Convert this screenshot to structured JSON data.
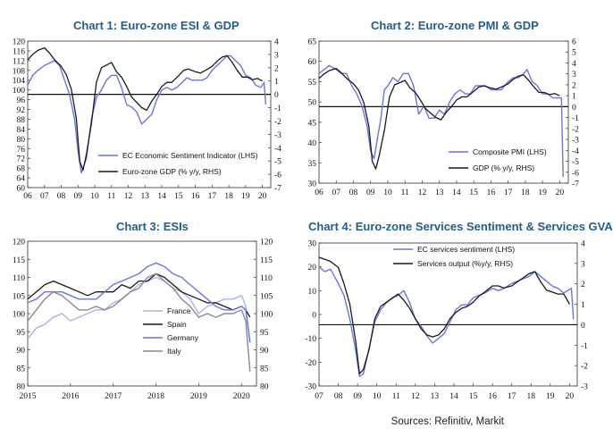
{
  "source": "Sources: Refinitiv, Markit",
  "colors": {
    "blue": "#6b74e6",
    "black": "#1a1a1a",
    "title": "#1f5f8b",
    "lightblue": "#aab2ee",
    "grey": "#8a8a8a"
  },
  "chart_data": [
    {
      "type": "line",
      "title": "Chart 1: Euro-zone ESI & GDP",
      "x_ticks": [
        "06",
        "07",
        "08",
        "09",
        "10",
        "11",
        "12",
        "13",
        "14",
        "15",
        "16",
        "17",
        "18",
        "19",
        "20"
      ],
      "ylim_left": [
        60,
        120
      ],
      "ylim_right": [
        -7,
        4
      ],
      "y_left_ticks": [
        120,
        116,
        112,
        108,
        104,
        100,
        96,
        92,
        88,
        84,
        80,
        76,
        72,
        68,
        64,
        60
      ],
      "y_right_ticks": [
        4,
        3,
        2,
        1,
        0,
        -1,
        -2,
        -3,
        -4,
        -5,
        -6,
        -7
      ],
      "zero_line_right": 0,
      "legend": [
        "EC Economic Sentiment Indicator (LHS)",
        "Euro-zone GDP (% y/y, RHS)"
      ],
      "series": [
        {
          "name": "EC Economic Sentiment Indicator (LHS)",
          "axis": "left",
          "color": "blue",
          "x": [
            2006.0,
            2006.3,
            2006.6,
            2007.0,
            2007.3,
            2007.6,
            2007.9,
            2008.2,
            2008.5,
            2008.8,
            2009.0,
            2009.2,
            2009.5,
            2009.8,
            2010.1,
            2010.4,
            2010.7,
            2011.0,
            2011.3,
            2011.6,
            2011.9,
            2012.2,
            2012.5,
            2012.8,
            2013.1,
            2013.4,
            2013.7,
            2014.0,
            2014.3,
            2014.6,
            2014.9,
            2015.2,
            2015.5,
            2015.8,
            2016.1,
            2016.4,
            2016.7,
            2017.0,
            2017.3,
            2017.6,
            2017.9,
            2018.1,
            2018.4,
            2018.7,
            2019.0,
            2019.3,
            2019.6,
            2019.9,
            2020.1,
            2020.2
          ],
          "y": [
            102,
            106,
            108,
            110,
            111,
            112,
            110,
            104,
            98,
            88,
            75,
            66,
            72,
            88,
            97,
            100,
            104,
            106,
            106,
            101,
            94,
            93,
            91,
            86,
            88,
            90,
            96,
            100,
            101,
            100,
            101,
            103,
            105,
            104,
            104,
            104,
            105,
            108,
            110,
            112,
            114,
            114,
            112,
            110,
            106,
            105,
            102,
            101,
            103,
            94
          ]
        },
        {
          "name": "Euro-zone GDP (% y/y, RHS)",
          "axis": "right",
          "color": "black",
          "x": [
            2006.0,
            2006.3,
            2006.6,
            2007.0,
            2007.3,
            2007.6,
            2008.0,
            2008.3,
            2008.6,
            2008.9,
            2009.1,
            2009.3,
            2009.5,
            2009.8,
            2010.1,
            2010.4,
            2010.7,
            2011.0,
            2011.3,
            2011.6,
            2011.9,
            2012.2,
            2012.5,
            2012.8,
            2013.1,
            2013.4,
            2013.7,
            2014.0,
            2014.3,
            2014.6,
            2015.0,
            2015.3,
            2015.6,
            2016.0,
            2016.3,
            2016.6,
            2017.0,
            2017.3,
            2017.6,
            2017.9,
            2018.2,
            2018.5,
            2018.8,
            2019.1,
            2019.4,
            2019.7,
            2020.0
          ],
          "y": [
            2.6,
            3.0,
            3.3,
            3.5,
            3.1,
            2.6,
            2.1,
            1.5,
            0.4,
            -1.8,
            -5.0,
            -5.7,
            -4.5,
            -2.2,
            0.9,
            2.0,
            2.2,
            2.4,
            1.7,
            1.3,
            0.6,
            -0.2,
            -0.6,
            -1.0,
            -1.2,
            -0.5,
            0.0,
            0.6,
            0.9,
            0.9,
            1.4,
            1.8,
            1.9,
            1.7,
            1.6,
            1.8,
            2.1,
            2.5,
            2.8,
            2.9,
            2.4,
            1.8,
            1.3,
            1.3,
            1.1,
            1.2,
            1.0
          ]
        }
      ]
    },
    {
      "type": "line",
      "title": "Chart 2: Euro-zone PMI & GDP",
      "x_ticks": [
        "06",
        "07",
        "08",
        "09",
        "10",
        "11",
        "12",
        "13",
        "14",
        "15",
        "16",
        "17",
        "18",
        "19",
        "20"
      ],
      "ylim_left": [
        30,
        65
      ],
      "ylim_right": [
        -7,
        6
      ],
      "y_left_ticks": [
        65,
        60,
        55,
        50,
        45,
        40,
        35,
        30
      ],
      "y_right_ticks": [
        6,
        5,
        4,
        3,
        2,
        1,
        0,
        -1,
        -2,
        -3,
        -4,
        -5,
        -6,
        -7
      ],
      "zero_line_right": 0,
      "legend": [
        "Composite PMI (LHS)",
        "GDP (% y/y, RHS)"
      ],
      "series": [
        {
          "name": "Composite PMI (LHS)",
          "axis": "left",
          "color": "blue",
          "x": [
            2006.0,
            2006.3,
            2006.6,
            2007.0,
            2007.3,
            2007.6,
            2007.9,
            2008.2,
            2008.5,
            2008.8,
            2009.0,
            2009.2,
            2009.4,
            2009.6,
            2009.8,
            2010.0,
            2010.3,
            2010.6,
            2010.9,
            2011.2,
            2011.5,
            2011.8,
            2012.1,
            2012.4,
            2012.7,
            2013.0,
            2013.3,
            2013.6,
            2013.9,
            2014.2,
            2014.5,
            2014.8,
            2015.1,
            2015.4,
            2015.7,
            2016.0,
            2016.3,
            2016.6,
            2017.0,
            2017.3,
            2017.6,
            2017.9,
            2018.1,
            2018.4,
            2018.7,
            2019.0,
            2019.3,
            2019.6,
            2019.9,
            2020.1,
            2020.2
          ],
          "y": [
            57,
            58,
            59,
            58,
            57,
            57,
            54,
            52,
            49,
            44,
            38,
            36,
            41,
            46,
            53,
            54,
            56,
            55,
            57,
            57,
            54,
            47,
            49,
            46,
            46,
            48,
            47,
            50,
            52,
            53,
            52,
            52,
            54,
            54,
            54,
            53,
            53,
            53,
            55,
            56,
            56,
            57,
            58,
            55,
            54,
            52,
            52,
            51,
            51,
            51,
            31.5
          ]
        },
        {
          "name": "GDP (% y/y, RHS)",
          "axis": "right",
          "color": "black",
          "x": [
            2006.0,
            2006.3,
            2006.6,
            2007.0,
            2007.3,
            2007.6,
            2008.0,
            2008.3,
            2008.6,
            2008.9,
            2009.1,
            2009.3,
            2009.5,
            2009.8,
            2010.1,
            2010.4,
            2010.7,
            2011.0,
            2011.3,
            2011.6,
            2011.9,
            2012.2,
            2012.5,
            2012.8,
            2013.1,
            2013.4,
            2013.7,
            2014.0,
            2014.3,
            2014.6,
            2015.0,
            2015.3,
            2015.6,
            2016.0,
            2016.3,
            2016.6,
            2017.0,
            2017.3,
            2017.6,
            2017.9,
            2018.2,
            2018.5,
            2018.8,
            2019.1,
            2019.4,
            2019.7,
            2020.0
          ],
          "y": [
            2.6,
            3.0,
            3.3,
            3.5,
            3.1,
            2.6,
            2.1,
            1.5,
            0.4,
            -1.8,
            -5.0,
            -5.7,
            -4.5,
            -2.2,
            0.9,
            2.0,
            2.2,
            2.4,
            1.7,
            1.3,
            0.6,
            -0.2,
            -0.6,
            -1.0,
            -1.2,
            -0.5,
            0.0,
            0.6,
            0.9,
            0.9,
            1.4,
            1.8,
            1.9,
            1.7,
            1.6,
            1.8,
            2.1,
            2.5,
            2.8,
            2.9,
            2.4,
            1.8,
            1.3,
            1.3,
            1.1,
            1.2,
            1.0
          ]
        }
      ]
    },
    {
      "type": "line",
      "title": "Chart 3: ESIs",
      "x_ticks": [
        "2015",
        "2016",
        "2017",
        "2018",
        "2019",
        "2020"
      ],
      "ylim_left": [
        80,
        120
      ],
      "ylim_right": [
        80,
        120
      ],
      "y_left_ticks": [
        120,
        115,
        110,
        105,
        100,
        95,
        90,
        85,
        80
      ],
      "y_right_ticks": [
        120,
        115,
        110,
        105,
        100,
        95,
        90,
        85,
        80
      ],
      "legend": [
        "France",
        "Spain",
        "Germany",
        "Italy"
      ],
      "series": [
        {
          "name": "France",
          "axis": "left",
          "color": "lightblue",
          "x": [
            2015.0,
            2015.2,
            2015.4,
            2015.6,
            2015.8,
            2016.0,
            2016.2,
            2016.4,
            2016.6,
            2016.8,
            2017.0,
            2017.2,
            2017.4,
            2017.6,
            2017.8,
            2018.0,
            2018.2,
            2018.4,
            2018.6,
            2018.8,
            2019.0,
            2019.2,
            2019.4,
            2019.6,
            2019.8,
            2020.0,
            2020.1,
            2020.2
          ],
          "y": [
            93,
            96,
            97,
            99,
            100,
            98,
            99,
            100,
            101,
            101,
            103,
            104,
            106,
            108,
            109,
            110,
            109,
            107,
            106,
            104,
            100,
            102,
            103,
            104,
            104,
            105,
            102,
            92
          ]
        },
        {
          "name": "Spain",
          "axis": "left",
          "color": "black",
          "x": [
            2015.0,
            2015.2,
            2015.4,
            2015.6,
            2015.8,
            2016.0,
            2016.2,
            2016.4,
            2016.6,
            2016.8,
            2017.0,
            2017.2,
            2017.4,
            2017.6,
            2017.8,
            2018.0,
            2018.2,
            2018.4,
            2018.6,
            2018.8,
            2019.0,
            2019.2,
            2019.4,
            2019.6,
            2019.8,
            2020.0,
            2020.1,
            2020.2
          ],
          "y": [
            104,
            106,
            108,
            109,
            108,
            107,
            106,
            105,
            106,
            106,
            106,
            108,
            107,
            109,
            109,
            111,
            110,
            108,
            106,
            105,
            104,
            103,
            103,
            102,
            101,
            102,
            101,
            99
          ]
        },
        {
          "name": "Germany",
          "axis": "left",
          "color": "blue",
          "x": [
            2015.0,
            2015.2,
            2015.4,
            2015.6,
            2015.8,
            2016.0,
            2016.2,
            2016.4,
            2016.6,
            2016.8,
            2017.0,
            2017.2,
            2017.4,
            2017.6,
            2017.8,
            2018.0,
            2018.2,
            2018.4,
            2018.6,
            2018.8,
            2019.0,
            2019.2,
            2019.4,
            2019.6,
            2019.8,
            2020.0,
            2020.1,
            2020.2
          ],
          "y": [
            103,
            104,
            106,
            106,
            106,
            105,
            104,
            104,
            104,
            106,
            108,
            109,
            110,
            111,
            113,
            114,
            113,
            111,
            110,
            108,
            106,
            104,
            102,
            101,
            101,
            102,
            101,
            92
          ]
        },
        {
          "name": "Italy",
          "axis": "left",
          "color": "grey",
          "x": [
            2015.0,
            2015.2,
            2015.4,
            2015.6,
            2015.8,
            2016.0,
            2016.2,
            2016.4,
            2016.6,
            2016.8,
            2017.0,
            2017.2,
            2017.4,
            2017.6,
            2017.8,
            2018.0,
            2018.2,
            2018.4,
            2018.6,
            2018.8,
            2019.0,
            2019.2,
            2019.4,
            2019.6,
            2019.8,
            2020.0,
            2020.1,
            2020.2
          ],
          "y": [
            98,
            101,
            104,
            106,
            105,
            103,
            101,
            101,
            102,
            101,
            102,
            104,
            106,
            107,
            110,
            111,
            109,
            107,
            104,
            102,
            99,
            100,
            99,
            100,
            100,
            101,
            98,
            84
          ]
        }
      ]
    },
    {
      "type": "line",
      "title": "Chart 4: Euro-zone Services Sentiment & Services GVA",
      "x_ticks": [
        "07",
        "08",
        "09",
        "10",
        "11",
        "12",
        "13",
        "14",
        "15",
        "16",
        "17",
        "18",
        "19",
        "20"
      ],
      "ylim_left": [
        -30,
        30
      ],
      "ylim_right": [
        -3,
        4
      ],
      "y_left_ticks": [
        30,
        20,
        10,
        0,
        -10,
        -20,
        -30
      ],
      "y_right_ticks": [
        4,
        3,
        2,
        1,
        0,
        -1,
        -2,
        -3
      ],
      "zero_line_right": 0,
      "legend": [
        "EC services sentiment (LHS)",
        "Services output (%y/y, RHS)"
      ],
      "series": [
        {
          "name": "EC services sentiment (LHS)",
          "axis": "left",
          "color": "blue",
          "x": [
            2007.0,
            2007.3,
            2007.6,
            2008.0,
            2008.3,
            2008.6,
            2008.9,
            2009.1,
            2009.3,
            2009.6,
            2009.9,
            2010.2,
            2010.5,
            2010.8,
            2011.1,
            2011.4,
            2011.7,
            2012.0,
            2012.3,
            2012.6,
            2012.9,
            2013.2,
            2013.5,
            2013.8,
            2014.1,
            2014.4,
            2014.7,
            2015.0,
            2015.3,
            2015.6,
            2016.0,
            2016.3,
            2016.6,
            2017.0,
            2017.3,
            2017.6,
            2017.9,
            2018.2,
            2018.5,
            2018.8,
            2019.1,
            2019.4,
            2019.7,
            2019.9,
            2020.1,
            2020.2
          ],
          "y": [
            20,
            18,
            19,
            13,
            8,
            -2,
            -15,
            -26,
            -25,
            -14,
            -3,
            2,
            5,
            7,
            8,
            10,
            5,
            -2,
            -5,
            -9,
            -12,
            -10,
            -8,
            -3,
            2,
            4,
            4,
            7,
            8,
            9,
            11,
            10,
            11,
            13,
            14,
            15,
            16,
            18,
            16,
            14,
            12,
            11,
            9,
            10,
            11,
            -2
          ]
        },
        {
          "name": "Services output (%y/y, RHS)",
          "axis": "right",
          "color": "black",
          "x": [
            2007.0,
            2007.3,
            2007.6,
            2008.0,
            2008.3,
            2008.6,
            2008.9,
            2009.1,
            2009.3,
            2009.6,
            2009.9,
            2010.2,
            2010.5,
            2010.8,
            2011.1,
            2011.4,
            2011.7,
            2012.0,
            2012.3,
            2012.6,
            2012.9,
            2013.2,
            2013.5,
            2013.8,
            2014.1,
            2014.4,
            2014.7,
            2015.0,
            2015.3,
            2015.6,
            2016.0,
            2016.3,
            2016.6,
            2017.0,
            2017.3,
            2017.6,
            2017.9,
            2018.2,
            2018.5,
            2018.8,
            2019.1,
            2019.4,
            2019.7,
            2020.0
          ],
          "y": [
            3.3,
            3.2,
            3.1,
            2.8,
            2.0,
            1.0,
            -0.8,
            -2.4,
            -2.2,
            -1.2,
            0.3,
            0.9,
            1.1,
            1.3,
            1.5,
            1.2,
            0.8,
            0.3,
            -0.2,
            -0.5,
            -0.6,
            -0.5,
            -0.2,
            0.3,
            0.6,
            0.8,
            0.9,
            1.1,
            1.4,
            1.6,
            1.9,
            1.9,
            1.8,
            1.9,
            2.1,
            2.3,
            2.5,
            2.6,
            2.1,
            1.7,
            1.6,
            1.5,
            1.5,
            1.0
          ]
        }
      ]
    }
  ]
}
